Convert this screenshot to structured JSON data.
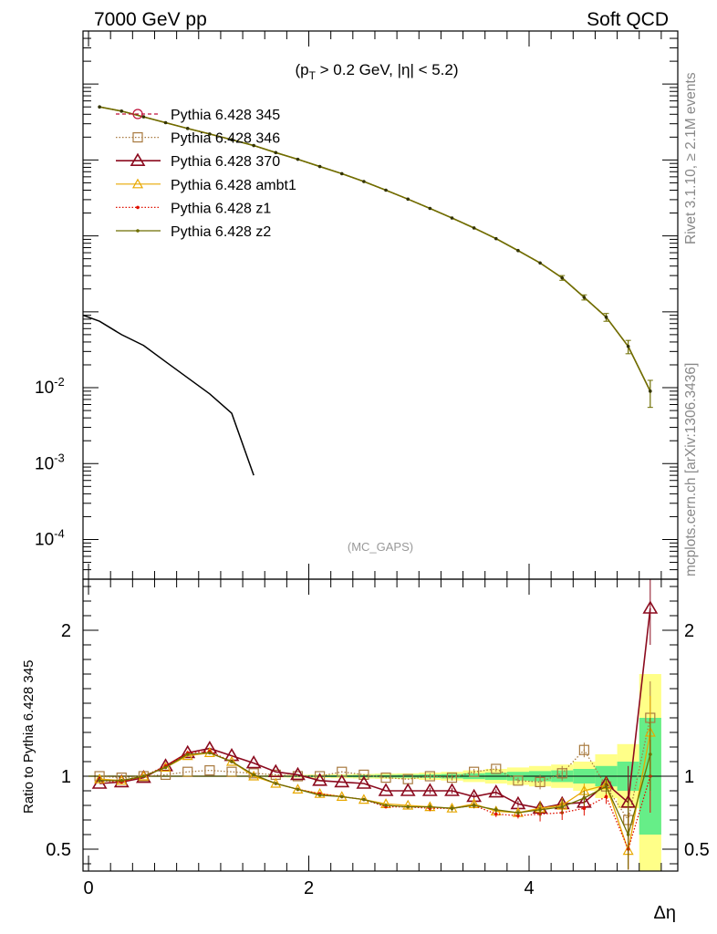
{
  "header": {
    "energy_label": "7000 GeV pp",
    "process_label": "Soft QCD"
  },
  "side_labels": {
    "rivet": "Rivet 3.1.10, ≥ 2.1M events",
    "ref": "mcplots.cern.ch [arXiv:1306.3436]"
  },
  "watermark": "(MC_GAPS)",
  "colors": {
    "p345": "#c0103a",
    "p346": "#a87a40",
    "p370": "#8b0a1e",
    "ambt1": "#e8a800",
    "z1": "#e01000",
    "z2": "#6e6e00",
    "ref": "#000000",
    "band_inner": "#66ee88",
    "band_outer": "#ffff88"
  },
  "chart_data": [
    {
      "type": "line",
      "panel": "main",
      "cut_label": "(p_T > 0.2 GeV, |η| < 5.2)",
      "ylog": true,
      "ylim": [
        3e-05,
        500
      ],
      "xlim": [
        -0.05,
        5.35
      ],
      "ytick_labels": [
        "10^-2",
        "10^-3",
        "10^-4"
      ],
      "legend_position": "top-left",
      "legend": [
        {
          "label": "Pythia 6.428 345",
          "key": "p345",
          "marker": "circle",
          "dash": "4,3"
        },
        {
          "label": "Pythia 6.428 346",
          "key": "p346",
          "marker": "square",
          "dash": "1.5,2"
        },
        {
          "label": "Pythia 6.428 370",
          "key": "p370",
          "marker": "triangle",
          "dash": ""
        },
        {
          "label": "Pythia 6.428 ambt1",
          "key": "ambt1",
          "marker": "triangle-small",
          "dash": ""
        },
        {
          "label": "Pythia 6.428 z1",
          "key": "z1",
          "marker": "dot",
          "dash": "1.5,2"
        },
        {
          "label": "Pythia 6.428 z2",
          "key": "z2",
          "marker": "dot",
          "dash": ""
        }
      ],
      "mc_curve": {
        "x": [
          0.1,
          0.3,
          0.5,
          0.7,
          0.9,
          1.1,
          1.3,
          1.5,
          1.7,
          1.9,
          2.1,
          2.3,
          2.5,
          2.7,
          2.9,
          3.1,
          3.3,
          3.5,
          3.7,
          3.9,
          4.1,
          4.3,
          4.5,
          4.7,
          4.9,
          5.1
        ],
        "y": [
          50,
          44,
          37,
          31,
          26,
          22,
          18.5,
          15.5,
          12.5,
          10.2,
          8.2,
          6.6,
          5.2,
          4.0,
          3.05,
          2.3,
          1.72,
          1.27,
          0.92,
          0.64,
          0.44,
          0.28,
          0.155,
          0.085,
          0.035,
          0.009
        ],
        "err": [
          0,
          0,
          0,
          0,
          0,
          0,
          0,
          0,
          0,
          0,
          0,
          0,
          0,
          0,
          0,
          0,
          0,
          0,
          0,
          0,
          0,
          0.02,
          0.012,
          0.01,
          0.007,
          0.0035
        ]
      },
      "ref_curve": {
        "x": [
          -0.05,
          0.1,
          0.3,
          0.5,
          0.7,
          0.9,
          1.1,
          1.3,
          1.5
        ],
        "y": [
          0.09,
          0.075,
          0.05,
          0.036,
          0.022,
          0.0135,
          0.0083,
          0.0046,
          0.0007
        ]
      }
    },
    {
      "type": "line",
      "panel": "ratio",
      "ylabel": "Ratio to Pythia 6.428 345",
      "xlabel": "Δη",
      "ylim": [
        0.35,
        2.35
      ],
      "xlim": [
        -0.05,
        5.35
      ],
      "xtick_labels": [
        "0",
        "2",
        "4"
      ],
      "ytick_labels": [
        "2",
        "1",
        "0.5"
      ],
      "x": [
        0.1,
        0.3,
        0.5,
        0.7,
        0.9,
        1.1,
        1.3,
        1.5,
        1.7,
        1.9,
        2.1,
        2.3,
        2.5,
        2.7,
        2.9,
        3.1,
        3.3,
        3.5,
        3.7,
        3.9,
        4.1,
        4.3,
        4.5,
        4.7,
        4.9,
        5.1
      ],
      "band": {
        "x_edges": [
          0.0,
          0.2,
          0.4,
          0.6,
          0.8,
          1.0,
          1.2,
          1.4,
          1.6,
          1.8,
          2.0,
          2.2,
          2.4,
          2.6,
          2.8,
          3.0,
          3.2,
          3.4,
          3.6,
          3.8,
          4.0,
          4.2,
          4.4,
          4.6,
          4.8,
          5.0,
          5.2
        ],
        "inner": [
          0.003,
          0.003,
          0.003,
          0.003,
          0.003,
          0.003,
          0.003,
          0.003,
          0.004,
          0.005,
          0.006,
          0.007,
          0.008,
          0.009,
          0.01,
          0.012,
          0.015,
          0.02,
          0.025,
          0.03,
          0.035,
          0.04,
          0.05,
          0.07,
          0.1,
          0.4
        ],
        "outer": [
          0.006,
          0.006,
          0.006,
          0.006,
          0.006,
          0.006,
          0.006,
          0.006,
          0.008,
          0.01,
          0.012,
          0.014,
          0.016,
          0.018,
          0.02,
          0.025,
          0.03,
          0.04,
          0.05,
          0.06,
          0.07,
          0.08,
          0.1,
          0.15,
          0.22,
          0.7
        ]
      },
      "series": [
        {
          "name": "Pythia 6.428 346",
          "key": "p346",
          "values": [
            1.0,
            0.99,
            1.0,
            1.01,
            1.03,
            1.04,
            1.03,
            1.02,
            1.01,
            1.0,
            1.0,
            1.03,
            1.01,
            0.99,
            0.98,
            1.0,
            0.99,
            1.03,
            1.05,
            0.97,
            0.96,
            1.02,
            1.18,
            0.93,
            0.7,
            1.4
          ]
        },
        {
          "name": "Pythia 6.428 370",
          "key": "p370",
          "values": [
            0.95,
            0.96,
            0.99,
            1.07,
            1.16,
            1.19,
            1.14,
            1.09,
            1.03,
            1.01,
            0.97,
            0.96,
            0.95,
            0.9,
            0.9,
            0.9,
            0.9,
            0.86,
            0.89,
            0.81,
            0.78,
            0.81,
            0.82,
            0.95,
            0.82,
            2.15
          ]
        },
        {
          "name": "Pythia 6.428 ambt1",
          "key": "ambt1",
          "values": [
            0.98,
            0.97,
            1.0,
            1.06,
            1.14,
            1.16,
            1.1,
            1.0,
            0.95,
            0.91,
            0.88,
            0.86,
            0.84,
            0.81,
            0.8,
            0.79,
            0.78,
            0.81,
            0.76,
            0.75,
            0.78,
            0.8,
            0.9,
            0.94,
            0.49,
            1.3
          ]
        },
        {
          "name": "Pythia 6.428 z1",
          "key": "z1",
          "values": [
            0.97,
            0.96,
            1.0,
            1.07,
            1.16,
            1.17,
            1.1,
            1.01,
            0.95,
            0.91,
            0.88,
            0.86,
            0.84,
            0.79,
            0.79,
            0.78,
            0.78,
            0.8,
            0.74,
            0.73,
            0.74,
            0.75,
            0.78,
            0.86,
            0.5,
            1.0
          ]
        },
        {
          "name": "Pythia 6.428 z2",
          "key": "z2",
          "values": [
            0.97,
            0.97,
            1.0,
            1.06,
            1.15,
            1.16,
            1.1,
            1.01,
            0.95,
            0.91,
            0.87,
            0.86,
            0.84,
            0.8,
            0.79,
            0.79,
            0.78,
            0.8,
            0.77,
            0.75,
            0.77,
            0.79,
            0.85,
            0.93,
            0.6,
            1.15
          ]
        }
      ]
    }
  ]
}
